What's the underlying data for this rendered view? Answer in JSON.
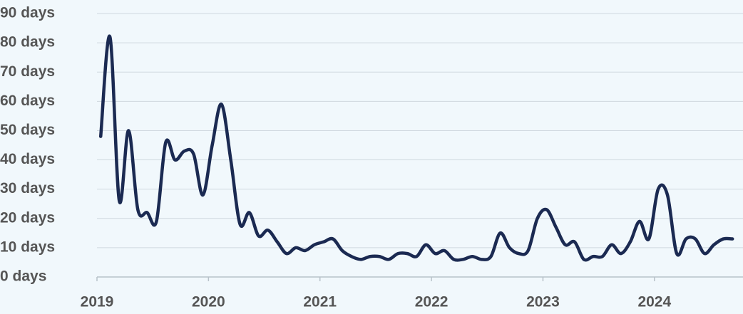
{
  "chart_data": {
    "type": "line",
    "categories": [
      "2019",
      null,
      null,
      null,
      null,
      null,
      null,
      null,
      null,
      null,
      null,
      null,
      "2020",
      null,
      null,
      null,
      null,
      null,
      null,
      null,
      null,
      null,
      null,
      null,
      "2021",
      null,
      null,
      null,
      null,
      null,
      null,
      null,
      null,
      null,
      null,
      null,
      "2022",
      null,
      null,
      null,
      null,
      null,
      null,
      null,
      null,
      null,
      null,
      null,
      "2023",
      null,
      null,
      null,
      null,
      null,
      null,
      null,
      null,
      null,
      null,
      null,
      "2024",
      null,
      null,
      null,
      null,
      null,
      null,
      null,
      null
    ],
    "values": [
      48,
      82,
      26,
      50,
      23,
      22,
      19,
      46,
      40,
      43,
      42,
      28,
      45,
      59,
      40,
      18,
      22,
      14,
      16,
      12,
      8,
      10,
      9,
      11,
      12,
      13,
      9,
      7,
      6,
      7,
      7,
      6,
      8,
      8,
      7,
      11,
      8,
      9,
      6,
      6,
      7,
      6,
      7,
      15,
      10,
      8,
      9,
      20,
      23,
      17,
      11,
      12,
      6,
      7,
      7,
      11,
      8,
      12,
      19,
      13,
      30,
      28,
      8,
      13,
      13,
      8,
      11,
      13,
      13
    ],
    "color": "#1b2a52",
    "ylim": [
      0,
      90
    ],
    "yticks": [
      {
        "value": 0,
        "label": "0 days"
      },
      {
        "value": 10,
        "label": "10 days"
      },
      {
        "value": 20,
        "label": "20 days"
      },
      {
        "value": 30,
        "label": "30 days"
      },
      {
        "value": 40,
        "label": "40 days"
      },
      {
        "value": 50,
        "label": "50 days"
      },
      {
        "value": 60,
        "label": "60 days"
      },
      {
        "value": 70,
        "label": "70 days"
      },
      {
        "value": 80,
        "label": "80 days"
      },
      {
        "value": 90,
        "label": "90 days"
      }
    ],
    "grid": true
  }
}
